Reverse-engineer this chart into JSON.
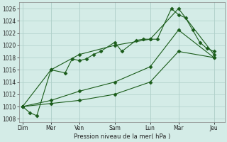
{
  "background_color": "#d4ece7",
  "grid_color": "#b0d0ca",
  "line_color": "#1a5c1a",
  "xlabel_text": "Pression niveau de la mer( hPa )",
  "ylim": [
    1007.5,
    1027
  ],
  "yticks": [
    1008,
    1010,
    1012,
    1014,
    1016,
    1018,
    1020,
    1022,
    1024,
    1026
  ],
  "day_labels": [
    "Dim",
    "Mer",
    "Ven",
    "Sam",
    "Lun",
    "Mar",
    "Jeu"
  ],
  "day_positions": [
    0,
    4,
    8,
    13,
    18,
    22,
    27
  ],
  "xlim": [
    -0.5,
    28.5
  ],
  "series1_x": [
    0,
    1,
    2,
    4,
    6,
    7,
    8,
    9,
    10,
    11,
    13,
    14,
    16,
    17,
    18,
    19,
    21,
    22,
    23,
    24,
    25,
    26,
    27
  ],
  "series1_y": [
    1010,
    1009,
    1008.5,
    1016,
    1015.5,
    1017.8,
    1017.5,
    1017.8,
    1018.5,
    1019,
    1020.5,
    1019,
    1020.8,
    1021,
    1021,
    1021,
    1026,
    1025,
    1024.5,
    1022.5,
    1020.5,
    1019.5,
    1019
  ],
  "series2_x": [
    0,
    4,
    8,
    13,
    18,
    22,
    27
  ],
  "series2_y": [
    1010,
    1016,
    1018.5,
    1020,
    1021,
    1026,
    1018.5
  ],
  "series3_x": [
    0,
    4,
    8,
    13,
    18,
    22,
    27
  ],
  "series3_y": [
    1010,
    1011,
    1012.5,
    1014,
    1016.5,
    1022.5,
    1018
  ],
  "series4_x": [
    0,
    4,
    8,
    13,
    18,
    22,
    27
  ],
  "series4_y": [
    1010,
    1010.5,
    1011,
    1012,
    1014,
    1019,
    1018
  ]
}
